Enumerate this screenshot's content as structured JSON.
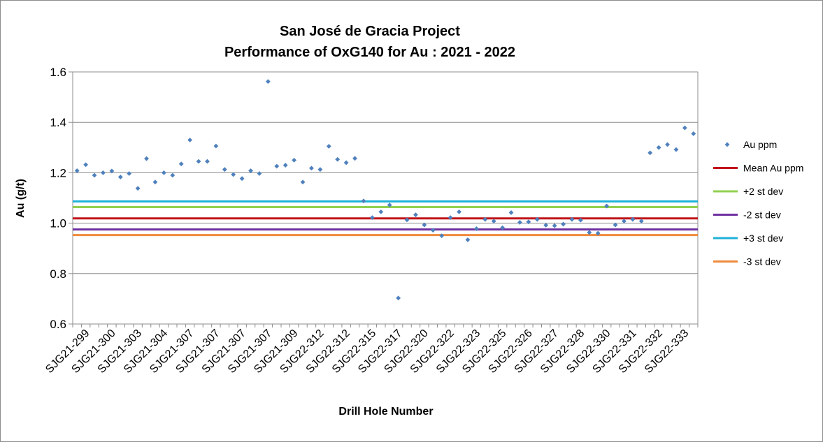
{
  "chart_data": {
    "type": "scatter",
    "title": [
      "San José de Gracia Project",
      "Performance of OxG140 for Au : 2021 - 2022"
    ],
    "xlabel": "Drill Hole Number",
    "ylabel": "Au (g/t)",
    "ylim": [
      0.6,
      1.6
    ],
    "yticks": [
      "0.6",
      "0.8",
      "1.0",
      "1.2",
      "1.4",
      "1.6"
    ],
    "grid": "horizontal",
    "legend_position": "right",
    "category_labels": [
      "SJG21-299",
      "SJG21-300",
      "SJG21-303",
      "SJG21-304",
      "SJG21-307",
      "SJG21-307",
      "SJG21-307",
      "SJG21-307",
      "SJG21-309",
      "SJG22-312",
      "SJG22-312",
      "SJG22-315",
      "SJG22-317",
      "SJG22-320",
      "SJG22-322",
      "SJG22-323",
      "SJG22-325",
      "SJG22-326",
      "SJG22-327",
      "SJG22-328",
      "SJG22-330",
      "SJG22-331",
      "SJG22-332",
      "SJG22-333"
    ],
    "series": [
      {
        "name": "Au ppm",
        "kind": "points",
        "color": "#4f81bd",
        "values": [
          1.208,
          1.232,
          1.19,
          1.2,
          1.207,
          1.183,
          1.197,
          1.138,
          1.256,
          1.163,
          1.2,
          1.19,
          1.235,
          1.33,
          1.245,
          1.245,
          1.306,
          1.213,
          1.193,
          1.177,
          1.208,
          1.197,
          1.562,
          1.226,
          1.23,
          1.25,
          1.163,
          1.218,
          1.213,
          1.305,
          1.253,
          1.24,
          1.257,
          1.088,
          1.022,
          1.045,
          1.072,
          0.703,
          1.013,
          1.033,
          0.993,
          0.972,
          0.95,
          1.022,
          1.045,
          0.934,
          0.978,
          1.015,
          1.008,
          0.982,
          1.042,
          1.003,
          1.005,
          1.015,
          0.992,
          0.99,
          0.996,
          1.015,
          1.012,
          0.963,
          0.96,
          1.068,
          0.993,
          1.008,
          1.015,
          1.008,
          1.279,
          1.3,
          1.312,
          1.292,
          1.378,
          1.355
        ]
      },
      {
        "name": "Mean Au ppm",
        "kind": "hline",
        "value": 1.019,
        "color": "#c0141a"
      },
      {
        "name": "+2 st dev",
        "kind": "hline",
        "value": 1.064,
        "color": "#92d050"
      },
      {
        "name": "-2 st dev",
        "kind": "hline",
        "value": 0.975,
        "color": "#7030a0"
      },
      {
        "name": "+3 st dev",
        "kind": "hline",
        "value": 1.086,
        "color": "#1fb2d8"
      },
      {
        "name": "-3 st dev",
        "kind": "hline",
        "value": 0.953,
        "color": "#f08a3c"
      }
    ]
  }
}
